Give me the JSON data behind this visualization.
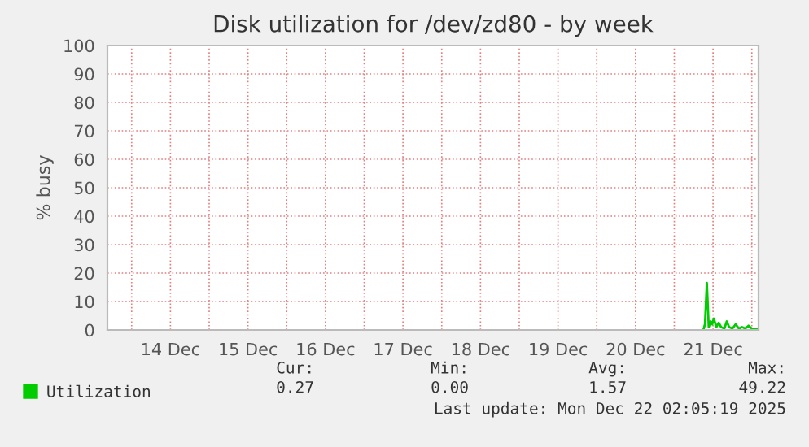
{
  "chart_data": {
    "type": "line",
    "title": "Disk utilization for /dev/zd80 - by week",
    "ylabel": "% busy",
    "xlim": [
      "2025-12-13T16:30",
      "2025-12-22T02:05"
    ],
    "xticks": [
      {
        "value": "2025-12-14T00:00",
        "label": null
      },
      {
        "value": "2025-12-14T12:00",
        "label": "14 Dec"
      },
      {
        "value": "2025-12-15T00:00",
        "label": null
      },
      {
        "value": "2025-12-15T12:00",
        "label": "15 Dec"
      },
      {
        "value": "2025-12-16T00:00",
        "label": null
      },
      {
        "value": "2025-12-16T12:00",
        "label": "16 Dec"
      },
      {
        "value": "2025-12-17T00:00",
        "label": null
      },
      {
        "value": "2025-12-17T12:00",
        "label": "17 Dec"
      },
      {
        "value": "2025-12-18T00:00",
        "label": null
      },
      {
        "value": "2025-12-18T12:00",
        "label": "18 Dec"
      },
      {
        "value": "2025-12-19T00:00",
        "label": null
      },
      {
        "value": "2025-12-19T12:00",
        "label": "19 Dec"
      },
      {
        "value": "2025-12-20T00:00",
        "label": null
      },
      {
        "value": "2025-12-20T12:00",
        "label": "20 Dec"
      },
      {
        "value": "2025-12-21T00:00",
        "label": null
      },
      {
        "value": "2025-12-21T12:00",
        "label": "21 Dec"
      },
      {
        "value": "2025-12-22T00:00",
        "label": null
      }
    ],
    "ylim": [
      0,
      100
    ],
    "yticks": [
      0,
      10,
      20,
      30,
      40,
      50,
      60,
      70,
      80,
      90,
      100
    ],
    "grid": true,
    "legend": "bottom left",
    "series": [
      {
        "name": "Utilization",
        "color": "#00cc00",
        "x": [
          "2025-12-21T09:00",
          "2025-12-21T09:30",
          "2025-12-21T10:05",
          "2025-12-21T10:40",
          "2025-12-21T11:15",
          "2025-12-21T11:45",
          "2025-12-21T12:15",
          "2025-12-21T13:00",
          "2025-12-21T13:45",
          "2025-12-21T14:30",
          "2025-12-21T15:30",
          "2025-12-21T16:15",
          "2025-12-21T17:00",
          "2025-12-21T18:00",
          "2025-12-21T19:00",
          "2025-12-21T20:00",
          "2025-12-21T21:00",
          "2025-12-21T22:00",
          "2025-12-21T23:00",
          "2025-12-22T00:00",
          "2025-12-22T01:00",
          "2025-12-22T02:00"
        ],
        "values": [
          0,
          2,
          16.5,
          1,
          3,
          2,
          4,
          1,
          2.5,
          1,
          0.5,
          3,
          1,
          0.5,
          2,
          0.5,
          1,
          0.5,
          1.5,
          0.5,
          0.3,
          0.3
        ]
      }
    ],
    "annotations": [
      "Cur:",
      "Min:",
      "Avg:",
      "Max:",
      "0.27",
      "0.00",
      "1.57",
      "49.22",
      "Last update: Mon Dec 22 02:05:19 2025"
    ]
  }
}
